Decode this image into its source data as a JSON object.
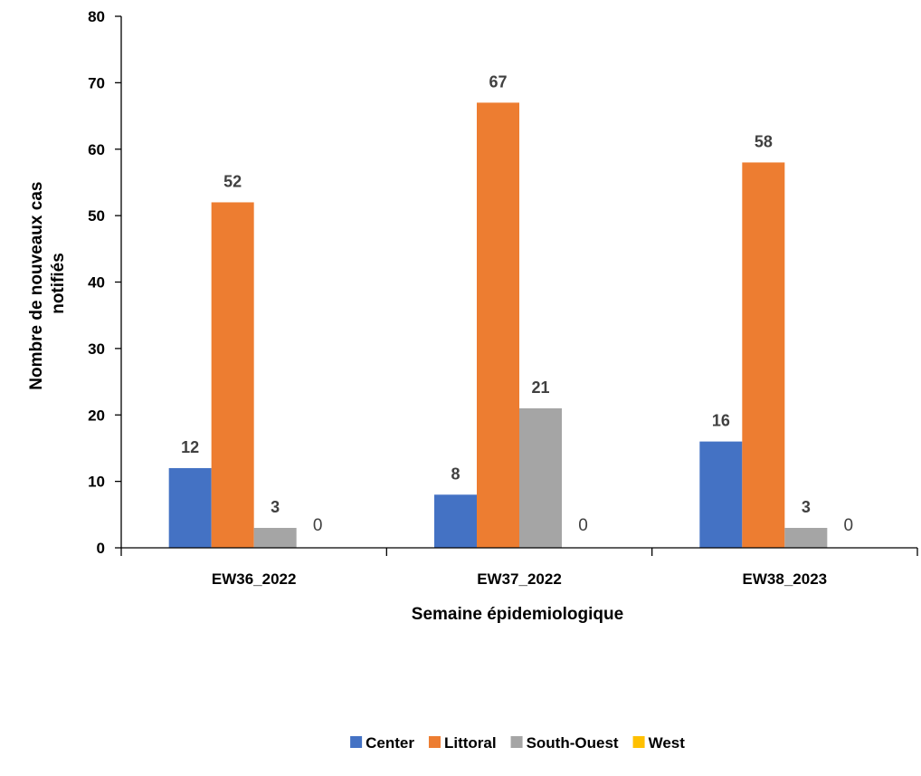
{
  "chart_data": {
    "type": "bar",
    "categories": [
      "EW36_2022",
      "EW37_2022",
      "EW38_2023"
    ],
    "series": [
      {
        "name": "Center",
        "values": [
          12,
          8,
          16
        ],
        "color": "#4472C4"
      },
      {
        "name": "Littoral",
        "values": [
          52,
          67,
          58
        ],
        "color": "#ED7D31"
      },
      {
        "name": "South-Ouest",
        "values": [
          3,
          21,
          3
        ],
        "color": "#A5A5A5"
      },
      {
        "name": "West",
        "values": [
          0,
          0,
          0
        ],
        "color": "#FFC000"
      }
    ],
    "yticks": [
      "0",
      "10",
      "20",
      "30",
      "40",
      "50",
      "60",
      "70",
      "80"
    ],
    "ylim": [
      0,
      80
    ],
    "xlabel": "Semaine épidemiologique",
    "ylabel_lines": [
      "Nombre de nouveaux cas",
      "notifiés"
    ],
    "grid": false,
    "legend_position": "bottom"
  }
}
